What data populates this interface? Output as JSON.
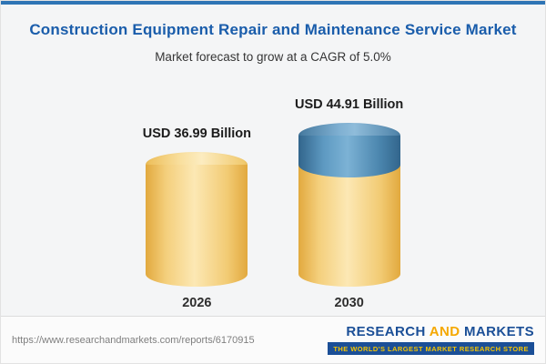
{
  "title": "Construction Equipment Repair and Maintenance Service Market",
  "subtitle": "Market forecast to grow at a CAGR of 5.0%",
  "chart_data": {
    "type": "bar",
    "categories": [
      "2026",
      "2030"
    ],
    "values": [
      36.99,
      44.91
    ],
    "value_labels": [
      "USD 36.99 Billion",
      "USD 44.91 Billion"
    ],
    "title": "Construction Equipment Repair and Maintenance Service Market",
    "xlabel": "",
    "ylabel": "USD Billion",
    "ylim": [
      0,
      50
    ],
    "grid": false,
    "legend_position": "none",
    "bar_style": "cylinder",
    "colors": {
      "base_segment": "#f2cb74",
      "growth_segment": "#5e9ac2",
      "accent": "#2e74b5",
      "title": "#1a5dab"
    }
  },
  "footer": {
    "url": "https://www.researchandmarkets.com/reports/6170915",
    "logo_research": "RESEARCH",
    "logo_and": " AND ",
    "logo_markets": "MARKETS",
    "logo_tagline": "THE WORLD'S LARGEST MARKET RESEARCH STORE"
  }
}
